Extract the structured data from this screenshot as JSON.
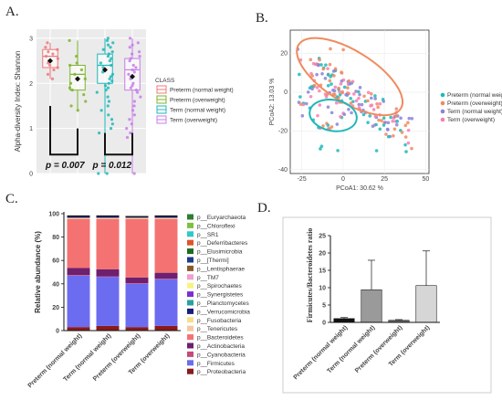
{
  "chart_data": [
    {
      "panel": "A.",
      "type": "scatter",
      "ylabel": "Alpha-diversity Index: Shannon",
      "yticks": [
        "0",
        "1",
        "2",
        "3"
      ],
      "ylim": [
        0,
        3.2
      ],
      "legend_title": "CLASS",
      "legend_position": "right",
      "groups": [
        {
          "name": "Preterm (normal weight)",
          "color": "#f0787a",
          "median": 2.6,
          "q1": 2.35,
          "q3": 2.75,
          "mean": 2.5,
          "min": 2.1,
          "max": 2.9,
          "points": [
            2.9,
            2.8,
            2.75,
            2.7,
            2.65,
            2.6,
            2.55,
            2.5,
            2.45,
            2.4,
            2.35,
            2.3,
            2.2,
            2.1
          ]
        },
        {
          "name": "Preterm (overweight)",
          "color": "#7db52a",
          "median": 2.2,
          "q1": 1.85,
          "q3": 2.4,
          "mean": 2.1,
          "min": 1.4,
          "max": 2.95,
          "points": [
            2.95,
            2.6,
            2.45,
            2.4,
            2.3,
            2.2,
            2.1,
            2.0,
            1.9,
            1.85,
            1.75,
            1.6,
            1.5,
            1.4
          ]
        },
        {
          "name": "Term (normal weight)",
          "color": "#1fb8b8",
          "median": 2.4,
          "q1": 2.0,
          "q3": 2.65,
          "mean": 2.3,
          "min": 0.0,
          "max": 3.0,
          "points": [
            3.0,
            2.95,
            2.9,
            2.85,
            2.8,
            2.75,
            2.7,
            2.65,
            2.6,
            2.55,
            2.5,
            2.45,
            2.4,
            2.35,
            2.3,
            2.25,
            2.2,
            2.15,
            2.1,
            2.05,
            2.0,
            1.95,
            1.9,
            1.85,
            1.8,
            1.7,
            1.6,
            1.5,
            1.4,
            1.3,
            1.2,
            1.1,
            1.0,
            0.9,
            0.0,
            0.0
          ]
        },
        {
          "name": "Term (overweight)",
          "color": "#c77ce8",
          "median": 2.3,
          "q1": 1.85,
          "q3": 2.55,
          "mean": 2.15,
          "min": 0.0,
          "max": 3.0,
          "points": [
            3.0,
            2.9,
            2.85,
            2.8,
            2.7,
            2.65,
            2.6,
            2.55,
            2.5,
            2.4,
            2.35,
            2.3,
            2.25,
            2.2,
            2.1,
            2.0,
            1.95,
            1.9,
            1.85,
            1.8,
            1.7,
            1.6,
            1.5,
            1.4,
            1.3,
            1.2,
            1.1,
            1.0,
            0.9,
            0.8,
            0.0
          ]
        }
      ],
      "annotations": [
        "p = 0.007",
        "p = 0.012"
      ]
    },
    {
      "panel": "B.",
      "type": "scatter",
      "xlabel": "PCoA1: 30.62 %",
      "ylabel": "PCoA2: 13.03 %",
      "xticks": [
        "-25",
        "0",
        "25",
        "50"
      ],
      "yticks": [
        "20",
        "0",
        "-20",
        "-40"
      ],
      "xlim": [
        -32,
        52
      ],
      "ylim": [
        -42,
        32
      ],
      "legend_position": "right",
      "series": [
        {
          "name": "Preterm (normal weight)",
          "color": "#1fb8b8"
        },
        {
          "name": "Preterm (overweight)",
          "color": "#f08a5d"
        },
        {
          "name": "Term (normal weight)",
          "color": "#8a82d8"
        },
        {
          "name": "Term (overweight)",
          "color": "#f77fb0"
        }
      ]
    },
    {
      "panel": "C.",
      "type": "bar",
      "ylabel": "Relative abundance (%)",
      "yticks": [
        "0",
        "20",
        "40",
        "60",
        "80",
        "100"
      ],
      "ylim": [
        0,
        100
      ],
      "categories": [
        "Preterm (normal weight)",
        "Term (normal weight)",
        "Preterm (overweight)",
        "Term (overweight)"
      ],
      "series": [
        {
          "name": "p__Proteobacteria",
          "color": "#8b1a1a",
          "values": [
            3,
            4,
            3,
            4
          ]
        },
        {
          "name": "p__Firmicutes",
          "color": "#6c6cf0",
          "values": [
            44,
            42,
            37,
            40
          ]
        },
        {
          "name": "p__Cyanobacteria",
          "color": "#c64a7a",
          "values": [
            0.5,
            0.5,
            0.5,
            0.5
          ]
        },
        {
          "name": "p__Actinobacteria",
          "color": "#6e1f6e",
          "values": [
            6,
            6,
            5,
            5
          ]
        },
        {
          "name": "p__Bacteroidetes",
          "color": "#f47272",
          "values": [
            42,
            43,
            50,
            46
          ]
        },
        {
          "name": "p__Tenericutes",
          "color": "#f2c9a0",
          "values": [
            0.5,
            0.5,
            0.5,
            0.5
          ]
        },
        {
          "name": "p__Fusobacteria",
          "color": "#f5e08a",
          "values": [
            0.5,
            0.5,
            0.5,
            0.5
          ]
        },
        {
          "name": "p__Verrucomicrobia",
          "color": "#1c1c7a",
          "values": [
            2,
            2,
            1.5,
            2
          ]
        },
        {
          "name": "p__Planctomycetes",
          "color": "#2aa1a1",
          "values": [
            0,
            0,
            0,
            0
          ]
        },
        {
          "name": "p__Synergistetes",
          "color": "#7a2fd0",
          "values": [
            0,
            0,
            0,
            0
          ]
        },
        {
          "name": "p__Spirochaetes",
          "color": "#f4f480",
          "values": [
            0,
            0,
            0,
            0
          ]
        },
        {
          "name": "p__TM7",
          "color": "#f0a0d0",
          "values": [
            0,
            0,
            0,
            0
          ]
        },
        {
          "name": "p__Lentisphaerae",
          "color": "#8b5a2b",
          "values": [
            0,
            0,
            0,
            0
          ]
        },
        {
          "name": "p__[Thermi]",
          "color": "#1e3a8a",
          "values": [
            0,
            0,
            0,
            0
          ]
        },
        {
          "name": "p__Elusimicrobia",
          "color": "#1f6b1f",
          "values": [
            0,
            0,
            0,
            0
          ]
        },
        {
          "name": "p__Deferribacteres",
          "color": "#e0552b",
          "values": [
            0,
            0,
            0,
            0
          ]
        },
        {
          "name": "p__SR1",
          "color": "#30c8c8",
          "values": [
            0,
            0,
            0,
            0
          ]
        },
        {
          "name": "p__Chloroflexi",
          "color": "#80c040",
          "values": [
            0,
            0,
            0,
            0
          ]
        },
        {
          "name": "p__Euryarchaeota",
          "color": "#2e7d32",
          "values": [
            0,
            0,
            0,
            0
          ]
        }
      ]
    },
    {
      "panel": "D.",
      "type": "bar",
      "ylabel": "Firmicutes/Bacteroidetes ratio",
      "yticks": [
        "0",
        "5",
        "10",
        "15",
        "20",
        "25"
      ],
      "ylim": [
        0,
        25
      ],
      "categories": [
        "Preterm (normal weight)",
        "Term (normal weight)",
        "Preterm (overweight)",
        "Term (overweight)"
      ],
      "values": [
        1.1,
        9.4,
        0.6,
        10.6
      ],
      "errors": [
        0.3,
        8.5,
        0.2,
        10.0
      ],
      "colors": [
        "#111111",
        "#9a9a9a",
        "#666666",
        "#d6d6d6"
      ]
    }
  ]
}
